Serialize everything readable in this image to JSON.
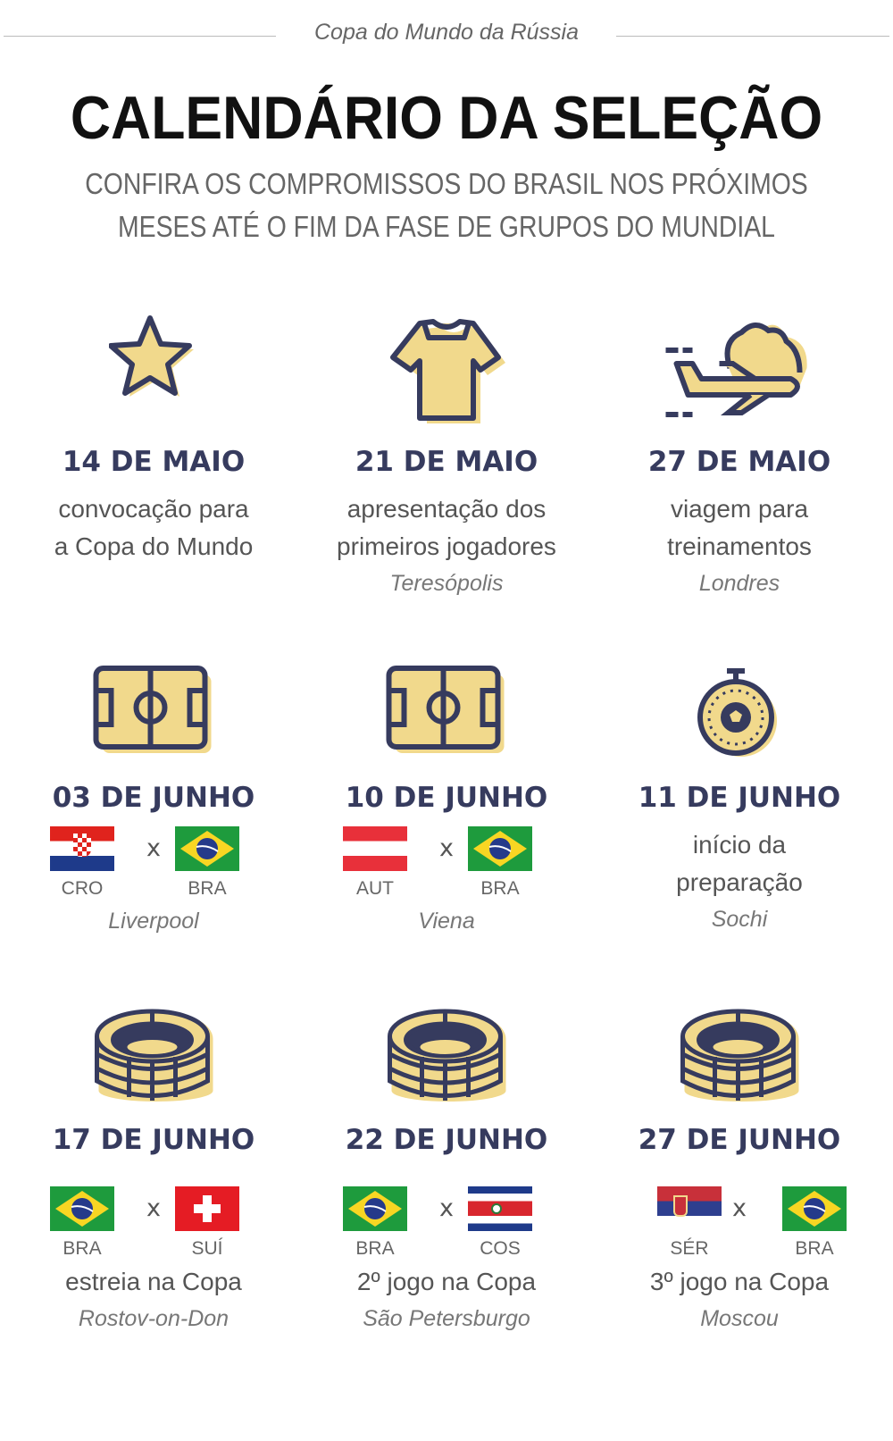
{
  "header": {
    "kicker": "Copa do Mundo da Rússia",
    "title": "CALENDÁRIO DA SELEÇÃO",
    "subtitle_line1": "CONFIRA OS COMPROMISSOS DO BRASIL NOS PRÓXIMOS",
    "subtitle_line2": "MESES ATÉ O FIM DA FASE DE GRUPOS DO MUNDIAL"
  },
  "colors": {
    "navy": "#363b5e",
    "yellow": "#f1d98c"
  },
  "events": [
    {
      "icon": "star-icon",
      "date": "14 DE MAIO",
      "desc": [
        "convocação para",
        "a Copa do Mundo"
      ]
    },
    {
      "icon": "shirt-icon",
      "date": "21 DE MAIO",
      "desc": [
        "apresentação dos",
        "primeiros jogadores"
      ],
      "city": "Teresópolis"
    },
    {
      "icon": "plane-cloud-icon",
      "date": "27 DE MAIO",
      "desc": [
        "viagem para",
        "treinamentos"
      ],
      "city": "Londres"
    },
    {
      "icon": "soccer-field-icon",
      "date": "03 DE JUNHO",
      "match": {
        "home": "CRO",
        "away": "BRA",
        "vs": "x"
      },
      "city": "Liverpool"
    },
    {
      "icon": "soccer-field-icon",
      "date": "10 DE JUNHO",
      "match": {
        "home": "AUT",
        "away": "BRA",
        "vs": "x"
      },
      "city": "Viena"
    },
    {
      "icon": "stopwatch-ball-icon",
      "date": "11 DE JUNHO",
      "desc": [
        "início da",
        "preparação"
      ],
      "city": "Sochi"
    },
    {
      "icon": "stadium-icon",
      "date": "17 DE JUNHO",
      "match": {
        "home": "BRA",
        "away": "SUÍ",
        "vs": "x"
      },
      "desc": [
        "estreia na Copa"
      ],
      "city": "Rostov-on-Don"
    },
    {
      "icon": "stadium-icon",
      "date": "22 DE JUNHO",
      "match": {
        "home": "BRA",
        "away": "COS",
        "vs": "x"
      },
      "desc": [
        "2º jogo na Copa"
      ],
      "city": "São Petersburgo"
    },
    {
      "icon": "stadium-icon",
      "date": "27 DE JUNHO",
      "match": {
        "home": "SÉR",
        "away": "BRA",
        "vs": "x"
      },
      "desc": [
        "3º jogo na Copa"
      ],
      "city": "Moscou"
    }
  ]
}
